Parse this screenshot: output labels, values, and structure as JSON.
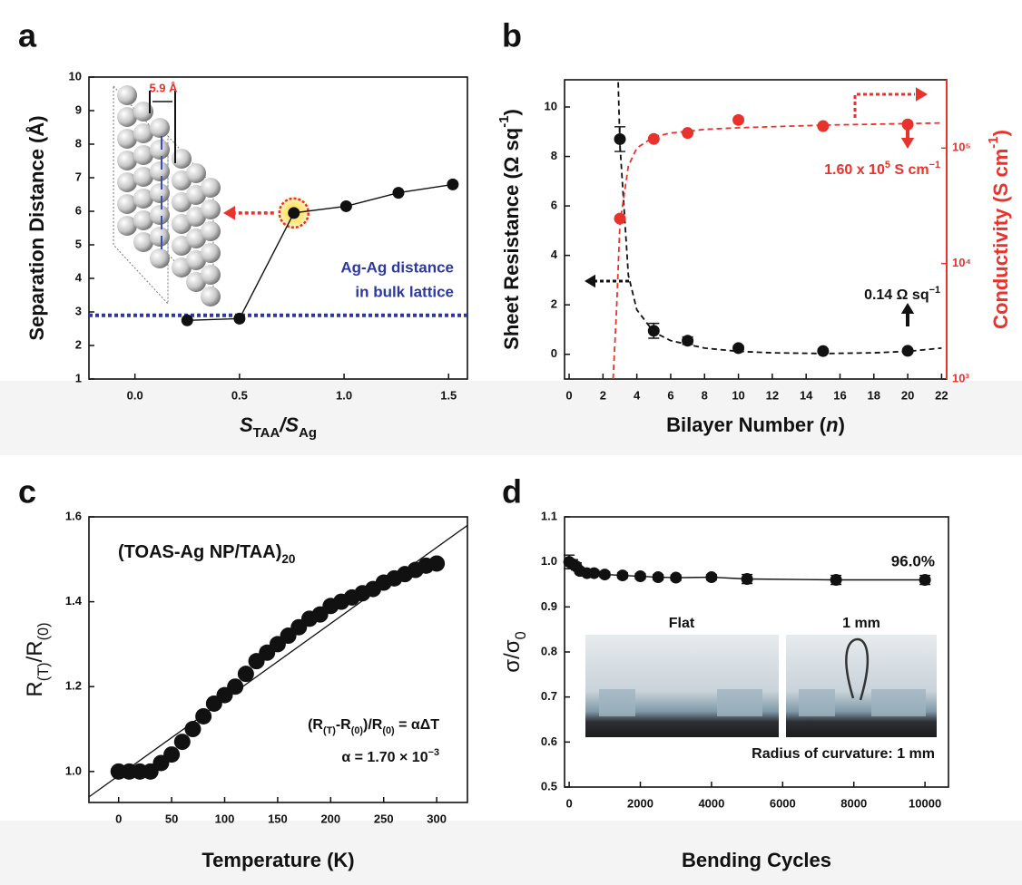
{
  "chart_data": [
    {
      "type": "line",
      "label": "a",
      "x_label": [
        "S",
        "TAA",
        "/S",
        "Ag"
      ],
      "y_label": "Separation Distance (Å)",
      "x": [
        0.25,
        0.5,
        0.76,
        1.01,
        1.26,
        1.52
      ],
      "series": [
        {
          "color": "#111111",
          "values": [
            2.75,
            2.8,
            5.95,
            6.15,
            6.55,
            6.8
          ]
        }
      ],
      "xlim": [
        -0.22,
        1.59
      ],
      "xticks": [
        {
          "value": 0,
          "label": "0.0"
        },
        {
          "value": 0.5,
          "label": "0.5"
        },
        {
          "value": 1,
          "label": "1.0"
        },
        {
          "value": 1.5,
          "label": "1.5"
        }
      ],
      "ylim": [
        1,
        10
      ],
      "yticks": [
        1,
        2,
        3,
        4,
        5,
        6,
        7,
        8,
        9,
        10
      ],
      "reference_line": {
        "value": 2.9,
        "color": "#2b3a9c",
        "label": [
          "Ag-Ag distance",
          "in bulk lattice"
        ]
      },
      "inset_label": "5.9 Å"
    },
    {
      "type": "line",
      "label": "b",
      "x_label": [
        "Bilayer Number (",
        "n",
        ")"
      ],
      "y_label": [
        "Sheet Resistance (Ω sq",
        "-1",
        ")"
      ],
      "y2_label": [
        "Conductivity (S cm",
        "-1",
        ")"
      ],
      "x": [
        3,
        5,
        7,
        10,
        15,
        20
      ],
      "series": [
        {
          "color": "#111111",
          "values": [
            8.7,
            0.95,
            0.55,
            0.25,
            0.13,
            0.14
          ],
          "errors": [
            0.5,
            0.3,
            0.15,
            0.1,
            0.08,
            0.06
          ]
        },
        {
          "color": "#e8322b",
          "axis": "y2",
          "values": [
            24500,
            120000,
            135000,
            175000,
            155000,
            160000
          ]
        }
      ],
      "fits": [
        {
          "color": "#111111",
          "x": [
            2.9,
            3,
            3.5,
            4,
            5,
            6,
            8,
            10,
            12,
            15,
            18,
            20,
            22
          ],
          "values": [
            11,
            8.5,
            3.2,
            1.8,
            0.9,
            0.55,
            0.25,
            0.12,
            0.06,
            0.03,
            0.06,
            0.12,
            0.25
          ]
        },
        {
          "color": "#e8322b",
          "axis": "y2",
          "x": [
            2.6,
            2.8,
            3,
            3.5,
            4,
            5,
            6,
            8,
            10,
            15,
            20,
            22
          ],
          "values": [
            1000,
            4000,
            22000,
            70000,
            100000,
            125000,
            135000,
            145000,
            150000,
            158000,
            163000,
            165000
          ]
        }
      ],
      "xlim": [
        -0.27,
        22.3
      ],
      "xticks": [
        0,
        2,
        4,
        6,
        8,
        10,
        12,
        14,
        16,
        18,
        20,
        22
      ],
      "ylim": [
        -1,
        11.1
      ],
      "yticks": [
        0,
        2,
        4,
        6,
        8,
        10
      ],
      "y2lim": [
        1000,
        390000
      ],
      "y2scale": "log",
      "y2ticks": [
        {
          "value": 1000,
          "label": "10³"
        },
        {
          "value": 10000,
          "label": "10⁴"
        },
        {
          "value": 100000,
          "label": "10⁵"
        }
      ],
      "annotations": [
        [
          "1.60 x 10",
          "5",
          " S cm",
          "−1"
        ],
        [
          "0.14 Ω sq",
          "−1"
        ]
      ]
    },
    {
      "type": "scatter",
      "label": "c",
      "x_label": "Temperature (K)",
      "y_label": [
        "R",
        "(T)",
        "/R",
        "(0)"
      ],
      "x": [
        0,
        10,
        20,
        30,
        40,
        50,
        60,
        70,
        80,
        90,
        100,
        110,
        120,
        130,
        140,
        150,
        160,
        170,
        180,
        190,
        200,
        210,
        220,
        230,
        240,
        250,
        260,
        270,
        280,
        290,
        300
      ],
      "series": [
        {
          "color": "#111111",
          "values": [
            1.0,
            1.0,
            1.0,
            1.0,
            1.02,
            1.04,
            1.07,
            1.1,
            1.13,
            1.16,
            1.18,
            1.2,
            1.23,
            1.26,
            1.28,
            1.3,
            1.32,
            1.34,
            1.36,
            1.37,
            1.39,
            1.4,
            1.41,
            1.42,
            1.43,
            1.445,
            1.455,
            1.465,
            1.475,
            1.485,
            1.49
          ]
        }
      ],
      "fits": [
        {
          "color": "#111111",
          "x": [
            -28,
            329
          ],
          "values": [
            0.94,
            1.58
          ]
        }
      ],
      "xlim": [
        -28,
        329
      ],
      "xticks": [
        0,
        50,
        100,
        150,
        200,
        250,
        300
      ],
      "ylim": [
        0.927,
        1.6
      ],
      "yticks": [
        {
          "value": 1,
          "label": "1.0"
        },
        1.2,
        1.4,
        1.6
      ],
      "annotations": [
        [
          "(TOAS-Ag NP/TAA)",
          "20"
        ],
        [
          "(R",
          "(T)",
          "-R",
          "(0)",
          ")/R",
          "(0)",
          " = αΔT"
        ],
        [
          "α = 1.70 × 10",
          "−3"
        ]
      ]
    },
    {
      "type": "line",
      "label": "d",
      "x_label": "Bending Cycles",
      "y_label": [
        "σ/σ",
        "0"
      ],
      "x": [
        0,
        100,
        200,
        300,
        500,
        700,
        1000,
        1500,
        2000,
        2500,
        3000,
        4000,
        5000,
        7500,
        10000
      ],
      "series": [
        {
          "color": "#111111",
          "values": [
            1.0,
            0.995,
            0.99,
            0.98,
            0.975,
            0.975,
            0.972,
            0.97,
            0.968,
            0.966,
            0.965,
            0.966,
            0.962,
            0.96,
            0.96
          ],
          "errors": [
            0.015,
            0.01,
            0.008,
            0.006,
            0.006,
            0.006,
            0.006,
            0.006,
            0.006,
            0.006,
            0.006,
            0.006,
            0.01,
            0.01,
            0.01
          ]
        }
      ],
      "xlim": [
        -130,
        10660
      ],
      "xticks": [
        0,
        2000,
        4000,
        6000,
        8000,
        10000
      ],
      "ylim": [
        0.5,
        1.1
      ],
      "yticks": [
        0.5,
        0.6,
        0.7,
        0.8,
        0.9,
        {
          "value": 1,
          "label": "1.0"
        },
        1.1
      ],
      "annotations": [
        "96.0%",
        "Flat",
        "1 mm",
        "Radius of curvature: 1 mm"
      ]
    }
  ]
}
